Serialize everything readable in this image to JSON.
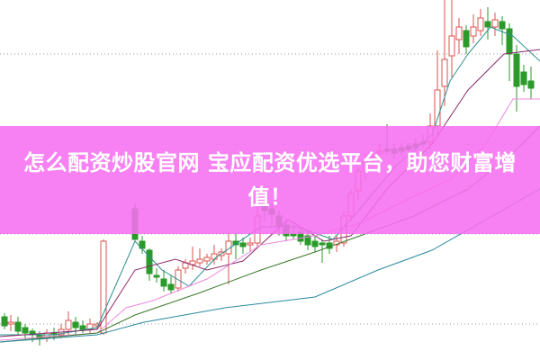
{
  "banner": {
    "title": "怎么配资炒股官网 宝应配资优选平台，助您财富增值！"
  },
  "colors": {
    "banner": "#f66ef0",
    "up_candle": "#d9534f",
    "down_candle": "#2a9a2a",
    "ma_fast": "#2b8f8f",
    "ma_mid": "#8a2a6a",
    "ma_pink": "#ee88dd",
    "ma_green": "#3a7a2a",
    "ma_slow": "#2a8aa0"
  },
  "icons": []
}
